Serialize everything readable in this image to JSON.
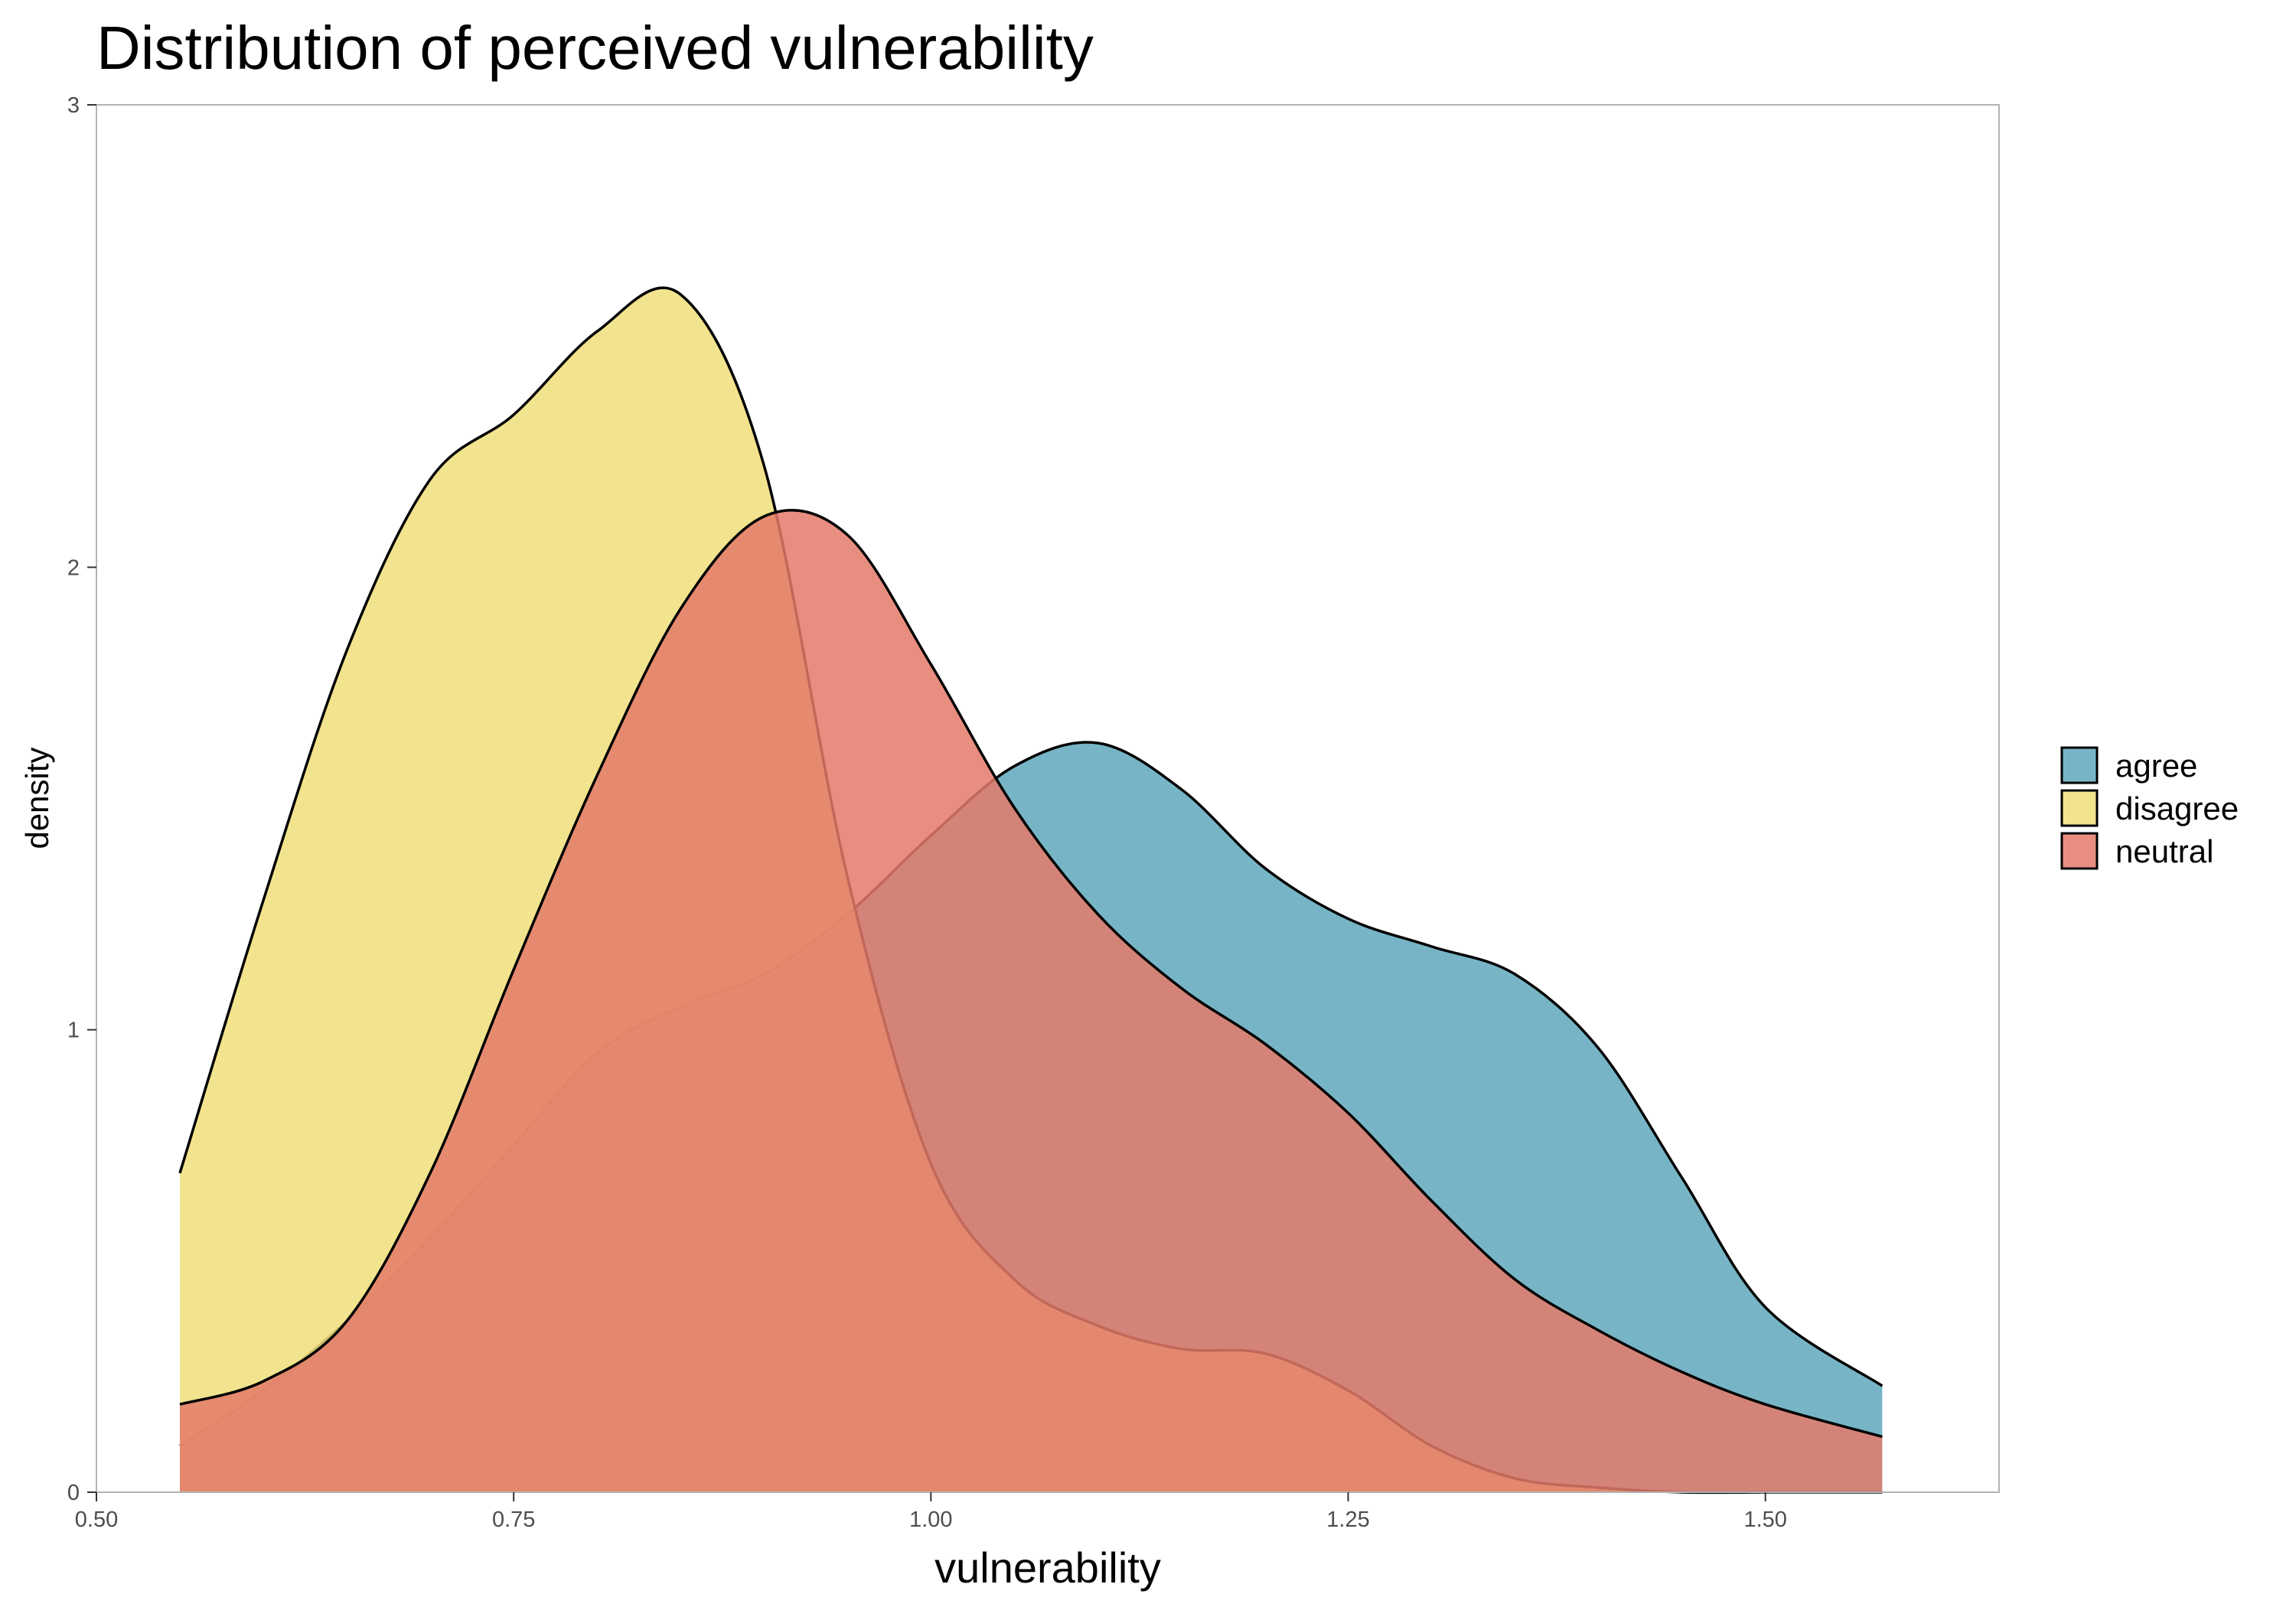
{
  "chart_data": {
    "type": "area",
    "subtype": "density",
    "title": "Distribution of perceived vulnerability",
    "xlabel": "vulnerability",
    "ylabel": "density",
    "xlim": [
      0.5,
      1.64
    ],
    "ylim": [
      0,
      3
    ],
    "x_ticks": [
      0.5,
      0.75,
      1.0,
      1.25,
      1.5
    ],
    "x_tick_labels": [
      "0.50",
      "0.75",
      "1.00",
      "1.25",
      "1.50"
    ],
    "y_ticks": [
      0,
      1,
      2,
      3
    ],
    "y_tick_labels": [
      "0",
      "1",
      "2",
      "3"
    ],
    "grid": false,
    "legend_position": "right",
    "x": [
      0.55,
      0.6,
      0.65,
      0.7,
      0.75,
      0.8,
      0.85,
      0.9,
      0.95,
      1.0,
      1.05,
      1.1,
      1.15,
      1.2,
      1.25,
      1.3,
      1.35,
      1.4,
      1.45,
      1.5,
      1.57
    ],
    "series": [
      {
        "name": "agree",
        "color": "#5fa8bc",
        "values": [
          0.1,
          0.22,
          0.37,
          0.55,
          0.75,
          0.95,
          1.05,
          1.12,
          1.25,
          1.42,
          1.57,
          1.62,
          1.52,
          1.35,
          1.24,
          1.18,
          1.12,
          0.96,
          0.68,
          0.4,
          0.23
        ]
      },
      {
        "name": "disagree",
        "color": "#f0de7a",
        "values": [
          0.69,
          1.28,
          1.82,
          2.19,
          2.33,
          2.51,
          2.59,
          2.22,
          1.33,
          0.71,
          0.46,
          0.36,
          0.31,
          0.3,
          0.22,
          0.1,
          0.03,
          0.01,
          0.0,
          0.0,
          0.0
        ]
      },
      {
        "name": "neutral",
        "color": "#e47a6a",
        "values": [
          0.19,
          0.24,
          0.37,
          0.69,
          1.13,
          1.55,
          1.91,
          2.11,
          2.07,
          1.79,
          1.48,
          1.25,
          1.09,
          0.97,
          0.82,
          0.63,
          0.46,
          0.35,
          0.26,
          0.19,
          0.12
        ]
      }
    ]
  },
  "legend": {
    "items": [
      {
        "label": "agree",
        "color": "#5fa8bc"
      },
      {
        "label": "disagree",
        "color": "#f0de7a"
      },
      {
        "label": "neutral",
        "color": "#e47a6a"
      }
    ]
  }
}
